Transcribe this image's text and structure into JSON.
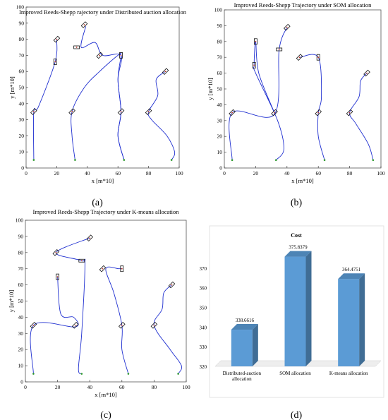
{
  "panels": [
    {
      "label": "(a)"
    },
    {
      "label": "(b)"
    },
    {
      "label": "(c)"
    },
    {
      "label": "(d)"
    }
  ],
  "chart_data": [
    {
      "type": "line",
      "title": "Improved Reeds-Shepp  rajectory under Distributed auction allocation",
      "xlabel": "x [m*10]",
      "ylabel": "y [m*10]",
      "xlim": [
        0,
        100
      ],
      "ylim": [
        0,
        100
      ],
      "xticks": [
        0,
        20,
        40,
        60,
        80,
        100
      ],
      "yticks": [
        0,
        10,
        20,
        30,
        40,
        50,
        60,
        70,
        80,
        90,
        100
      ],
      "grid": false,
      "line_color": "#1f2fd0",
      "start_marker_color": "#2e9a2e",
      "starts": [
        [
          5,
          5
        ],
        [
          32,
          5
        ],
        [
          64,
          5
        ],
        [
          95,
          5
        ]
      ],
      "vehicles": [
        [
          5,
          35,
          45
        ],
        [
          19,
          66,
          90
        ],
        [
          20,
          80,
          45
        ],
        [
          38,
          89,
          45
        ],
        [
          33,
          75,
          0
        ],
        [
          48,
          70,
          45
        ],
        [
          30,
          35,
          45
        ],
        [
          62,
          70,
          90
        ],
        [
          62,
          35,
          45
        ],
        [
          80,
          35,
          45
        ],
        [
          91,
          60,
          45
        ]
      ],
      "series": [
        {
          "values": [
            [
              5,
              5
            ],
            [
              5,
              35
            ],
            [
              8,
              38
            ],
            [
              19,
              66
            ],
            [
              20,
              80
            ]
          ]
        },
        {
          "values": [
            [
              32,
              5
            ],
            [
              30,
              20
            ],
            [
              30,
              35
            ],
            [
              38,
              50
            ],
            [
              48,
              60
            ],
            [
              60,
              70
            ],
            [
              62,
              70
            ],
            [
              60,
              55
            ],
            [
              62,
              35
            ],
            [
              60,
              20
            ],
            [
              64,
              5
            ]
          ]
        },
        {
          "values": [
            [
              64,
              5
            ],
            [
              60,
              20
            ],
            [
              62,
              35
            ],
            [
              60,
              55
            ],
            [
              62,
              70
            ],
            [
              50,
              70
            ],
            [
              45,
              78
            ],
            [
              36,
              75
            ],
            [
              39,
              88
            ]
          ]
        },
        {
          "values": [
            [
              95,
              5
            ],
            [
              97,
              10
            ],
            [
              92,
              20
            ],
            [
              82,
              30
            ],
            [
              80,
              35
            ],
            [
              86,
              45
            ],
            [
              85,
              55
            ],
            [
              91,
              60
            ]
          ]
        }
      ]
    },
    {
      "type": "line",
      "title": "Improved Reeds-Shepp Trajectory under SOM allocation",
      "xlabel": "x [m*10]",
      "ylabel": "y [m*10]",
      "xlim": [
        0,
        100
      ],
      "ylim": [
        0,
        100
      ],
      "xticks": [
        0,
        20,
        40,
        60,
        80,
        100
      ],
      "yticks": [
        0,
        10,
        20,
        30,
        40,
        50,
        60,
        70,
        80,
        90,
        100
      ],
      "grid": false,
      "line_color": "#1f2fd0",
      "start_marker_color": "#2e9a2e",
      "starts": [
        [
          5,
          5
        ],
        [
          33,
          5
        ],
        [
          64,
          5
        ],
        [
          95,
          5
        ]
      ],
      "vehicles": [
        [
          5,
          35,
          45
        ],
        [
          19,
          65,
          90
        ],
        [
          20,
          80,
          90
        ],
        [
          35,
          75,
          0
        ],
        [
          40,
          89,
          45
        ],
        [
          48,
          70,
          45
        ],
        [
          32,
          35,
          45
        ],
        [
          60,
          70,
          90
        ],
        [
          60,
          35,
          45
        ],
        [
          80,
          35,
          45
        ],
        [
          91,
          60,
          45
        ]
      ],
      "series": [
        {
          "values": [
            [
              5,
              5
            ],
            [
              5,
              35
            ],
            [
              32,
              34
            ],
            [
              35,
              75
            ],
            [
              40,
              89
            ]
          ]
        },
        {
          "values": [
            [
              33,
              5
            ],
            [
              38,
              12
            ],
            [
              34,
              30
            ],
            [
              20,
              60
            ],
            [
              19,
              65
            ],
            [
              20,
              80
            ],
            [
              22,
              60
            ],
            [
              32,
              35
            ]
          ]
        },
        {
          "values": [
            [
              64,
              5
            ],
            [
              60,
              20
            ],
            [
              60,
              35
            ],
            [
              62,
              45
            ],
            [
              60,
              70
            ],
            [
              48,
              70
            ]
          ]
        },
        {
          "values": [
            [
              95,
              5
            ],
            [
              92,
              15
            ],
            [
              84,
              28
            ],
            [
              80,
              35
            ],
            [
              86,
              45
            ],
            [
              87,
              55
            ],
            [
              91,
              60
            ]
          ]
        }
      ]
    },
    {
      "type": "line",
      "title": "Improved Reeds-Shepp Trajectory under K-means allocation",
      "xlabel": "x [m*10]",
      "ylabel": "y [m*10]",
      "xlim": [
        0,
        100
      ],
      "ylim": [
        0,
        100
      ],
      "xticks": [
        0,
        20,
        40,
        60,
        80,
        100
      ],
      "yticks": [
        0,
        10,
        20,
        30,
        40,
        50,
        60,
        70,
        80,
        90,
        100
      ],
      "grid": false,
      "line_color": "#1f2fd0",
      "start_marker_color": "#2e9a2e",
      "starts": [
        [
          5,
          5
        ],
        [
          35,
          5
        ],
        [
          64,
          5
        ],
        [
          95,
          5
        ]
      ],
      "vehicles": [
        [
          5,
          35,
          45
        ],
        [
          19,
          80,
          45
        ],
        [
          40,
          89,
          45
        ],
        [
          35,
          75,
          0
        ],
        [
          20,
          65,
          90
        ],
        [
          31,
          35,
          45
        ],
        [
          48,
          70,
          45
        ],
        [
          60,
          70,
          90
        ],
        [
          60,
          35,
          45
        ],
        [
          80,
          35,
          45
        ],
        [
          91,
          60,
          45
        ]
      ],
      "series": [
        {
          "values": [
            [
              5,
              5
            ],
            [
              5,
              35
            ],
            [
              31,
              34
            ],
            [
              30,
              40
            ],
            [
              22,
              42
            ],
            [
              20,
              65
            ]
          ]
        },
        {
          "values": [
            [
              35,
              5
            ],
            [
              33,
              8
            ],
            [
              35,
              30
            ],
            [
              37,
              72
            ],
            [
              35,
              75
            ],
            [
              19,
              80
            ],
            [
              40,
              89
            ]
          ]
        },
        {
          "values": [
            [
              64,
              5
            ],
            [
              60,
              20
            ],
            [
              60,
              35
            ],
            [
              55,
              55
            ],
            [
              50,
              70
            ],
            [
              58,
              70
            ],
            [
              60,
              70
            ]
          ]
        },
        {
          "values": [
            [
              95,
              5
            ],
            [
              97,
              10
            ],
            [
              90,
              20
            ],
            [
              80,
              35
            ],
            [
              85,
              45
            ],
            [
              86,
              55
            ],
            [
              91,
              60
            ]
          ]
        }
      ]
    },
    {
      "type": "bar",
      "title": "Cost",
      "categories": [
        "Distributed-auction allocation",
        "SOM allocation",
        "K-means allocation"
      ],
      "values": [
        338.6616,
        375.8379,
        364.4751
      ],
      "value_labels": [
        "338.6616",
        "375.8379",
        "364.4751"
      ],
      "ylim": [
        320,
        380
      ],
      "yticks": [
        320,
        330,
        340,
        350,
        360,
        370
      ],
      "bar_color": "#5b9bd5",
      "grid": false
    }
  ]
}
